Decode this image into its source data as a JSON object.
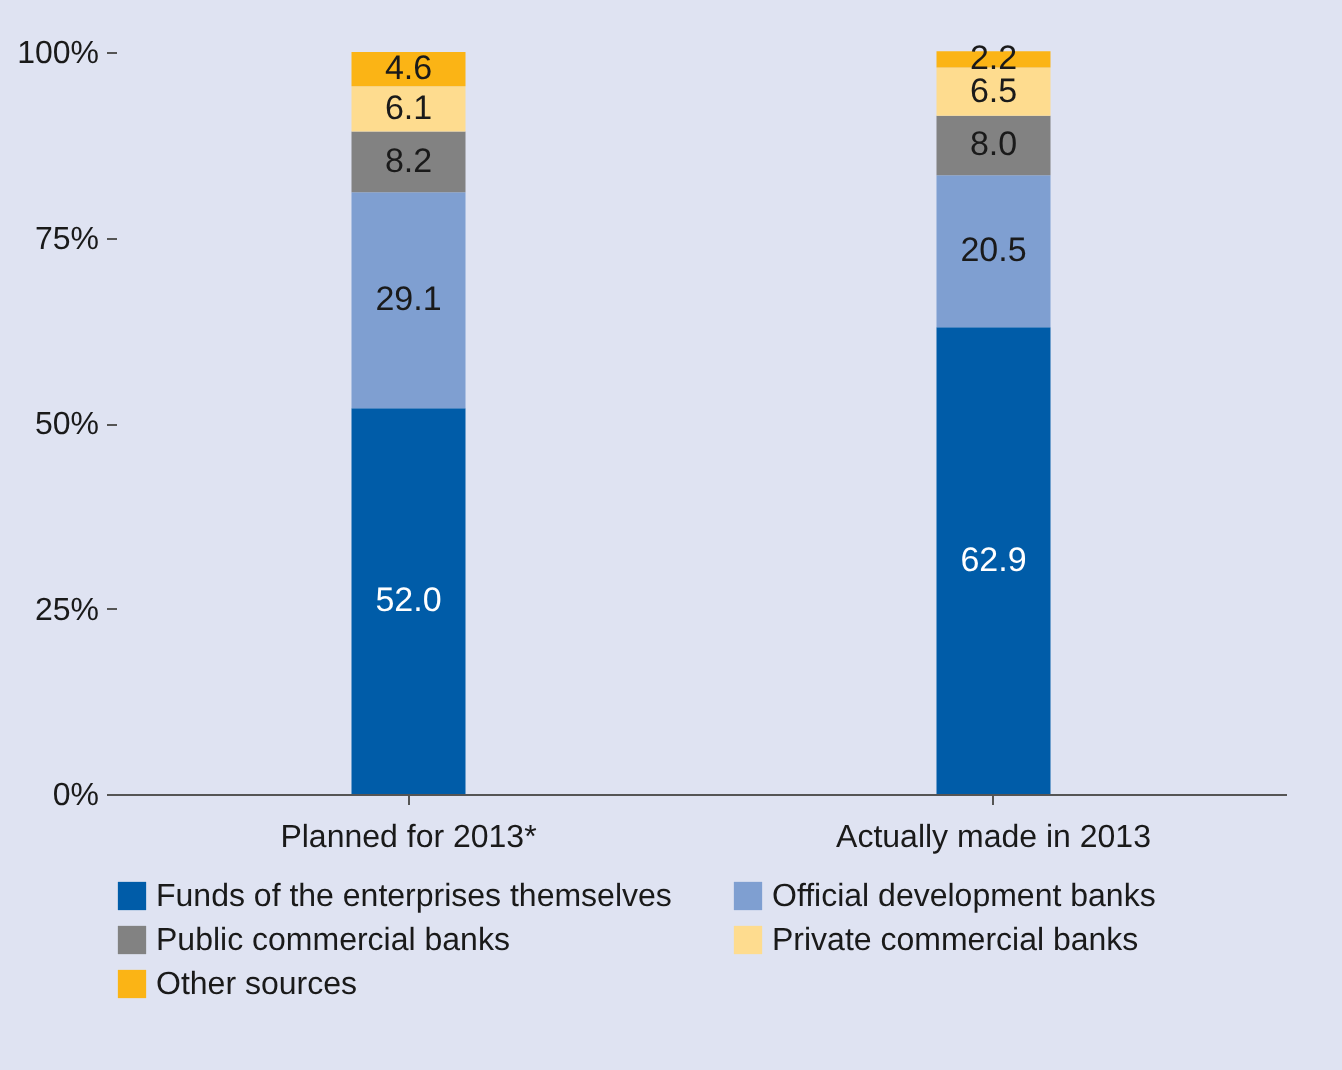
{
  "chart_data": {
    "type": "bar",
    "stacked": true,
    "categories": [
      "Planned for 2013*",
      "Actually made in 2013"
    ],
    "series": [
      {
        "name": "Funds of the enterprises themselves",
        "color": "#005ca8",
        "values": [
          52.0,
          62.9
        ],
        "value_labels": [
          "52.0",
          "62.9"
        ]
      },
      {
        "name": "Official development banks",
        "color": "#7f9fd1",
        "values": [
          29.1,
          20.5
        ],
        "value_labels": [
          "29.1",
          "20.5"
        ]
      },
      {
        "name": "Public commercial banks",
        "color": "#828282",
        "values": [
          8.2,
          8.0
        ],
        "value_labels": [
          "8.2",
          "8.0"
        ]
      },
      {
        "name": "Private commercial banks",
        "color": "#fedc8f",
        "values": [
          6.1,
          6.5
        ],
        "value_labels": [
          "6.1",
          "6.5"
        ]
      },
      {
        "name": "Other sources",
        "color": "#fbb415",
        "values": [
          4.6,
          2.2
        ],
        "value_labels": [
          "4.6",
          "2.2"
        ]
      }
    ],
    "ylim": [
      0,
      100
    ],
    "yticks": [
      {
        "value": 0,
        "label": "0%"
      },
      {
        "value": 25,
        "label": "25%"
      },
      {
        "value": 50,
        "label": "50%"
      },
      {
        "value": 75,
        "label": "75%"
      },
      {
        "value": 100,
        "label": "100%"
      }
    ],
    "legend": "bottom",
    "grid": false
  }
}
